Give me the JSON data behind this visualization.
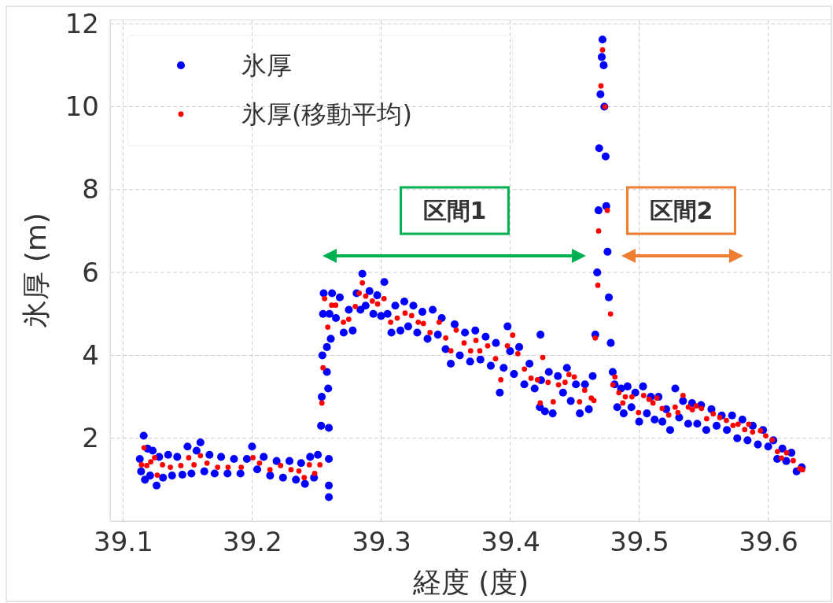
{
  "chart_data": {
    "type": "scatter",
    "xlabel": "経度 (度)",
    "ylabel": "氷厚 (m)",
    "xlim": [
      39.09,
      39.649
    ],
    "ylim": [
      0,
      12.1
    ],
    "xticks": [
      39.1,
      39.2,
      39.3,
      39.4,
      39.5,
      39.6
    ],
    "yticks": [
      2,
      4,
      6,
      8,
      10,
      12
    ],
    "grid": true,
    "legend": "top left",
    "marker": "circle",
    "annotations": [
      "区間1",
      "区間2"
    ],
    "series": [
      {
        "name": "氷厚",
        "color": "#0000ff",
        "x": [
          39.113,
          39.114,
          39.116,
          39.117,
          39.119,
          39.121,
          39.123,
          39.126,
          39.128,
          39.131,
          39.135,
          39.138,
          39.142,
          39.146,
          39.15,
          39.153,
          39.157,
          39.16,
          39.163,
          39.167,
          39.171,
          39.176,
          39.181,
          39.186,
          39.191,
          39.196,
          39.2,
          39.204,
          39.209,
          39.214,
          39.219,
          39.224,
          39.229,
          39.234,
          39.238,
          39.241,
          39.245,
          39.248,
          39.251,
          39.2535,
          39.254,
          39.2545,
          39.255,
          39.2555,
          39.2595,
          39.2595,
          39.2595,
          39.2595,
          39.259,
          39.258,
          39.258,
          39.26,
          39.261,
          39.262,
          39.265,
          39.268,
          39.271,
          39.275,
          39.278,
          39.281,
          39.284,
          39.2855,
          39.288,
          39.291,
          39.294,
          39.297,
          39.3,
          39.3025,
          39.305,
          39.308,
          39.311,
          39.315,
          39.318,
          39.321,
          39.325,
          39.328,
          39.332,
          39.336,
          39.34,
          39.344,
          39.347,
          39.35,
          39.354,
          39.357,
          39.361,
          39.365,
          39.369,
          39.373,
          39.377,
          39.381,
          39.385,
          39.389,
          39.392,
          39.395,
          39.398,
          39.4,
          39.403,
          39.407,
          39.411,
          39.415,
          39.419,
          39.423,
          39.4235,
          39.424,
          39.427,
          39.43,
          39.433,
          39.437,
          39.441,
          39.444,
          39.447,
          39.451,
          39.454,
          39.458,
          39.461,
          39.464,
          39.466,
          39.4675,
          39.4685,
          39.469,
          39.47,
          39.471,
          39.4716,
          39.4725,
          39.473,
          39.474,
          39.4745,
          39.4755,
          39.4765,
          39.478,
          39.4795,
          39.481,
          39.483,
          39.486,
          39.488,
          39.491,
          39.494,
          39.497,
          39.5,
          39.503,
          39.506,
          39.509,
          39.512,
          39.515,
          39.518,
          39.521,
          39.524,
          39.528,
          39.531,
          39.534,
          39.538,
          39.541,
          39.545,
          39.548,
          39.552,
          39.556,
          39.56,
          39.564,
          39.568,
          39.572,
          39.576,
          39.58,
          39.584,
          39.588,
          39.592,
          39.596,
          39.6,
          39.604,
          39.607,
          39.611,
          39.614,
          39.618,
          39.622,
          39.626
        ],
        "values": [
          1.5,
          1.2,
          2.06,
          1.0,
          1.75,
          1.1,
          1.7,
          0.86,
          1.55,
          1.05,
          1.6,
          1.1,
          1.55,
          1.12,
          1.8,
          1.15,
          1.7,
          1.9,
          1.2,
          1.6,
          1.15,
          1.55,
          1.15,
          1.5,
          1.15,
          1.5,
          1.8,
          1.25,
          1.55,
          1.1,
          1.45,
          1.05,
          1.45,
          1.0,
          1.4,
          0.9,
          1.55,
          1.05,
          1.6,
          2.3,
          3.0,
          4.0,
          5.0,
          5.5,
          0.58,
          0.86,
          1.5,
          2.25,
          3.2,
          4.2,
          3.6,
          5.0,
          4.4,
          5.5,
          4.9,
          5.4,
          4.55,
          5.1,
          4.6,
          5.5,
          5.1,
          5.97,
          5.2,
          5.55,
          5.0,
          5.45,
          4.95,
          5.77,
          5.0,
          4.55,
          5.2,
          4.6,
          5.3,
          4.7,
          5.2,
          4.55,
          5.05,
          4.4,
          5.1,
          4.5,
          4.9,
          4.15,
          3.8,
          4.75,
          4.0,
          4.55,
          3.85,
          4.6,
          3.9,
          4.45,
          3.75,
          4.3,
          3.1,
          3.7,
          4.7,
          4.1,
          3.55,
          4.2,
          3.3,
          3.8,
          3.2,
          2.75,
          4.5,
          3.4,
          2.65,
          3.6,
          2.6,
          3.5,
          3.1,
          3.7,
          2.9,
          3.3,
          2.6,
          3.3,
          2.7,
          3.5,
          4.5,
          6.0,
          7.5,
          9.0,
          10.3,
          11.2,
          11.62,
          11.0,
          10.0,
          8.8,
          7.6,
          6.5,
          5.4,
          4.3,
          3.6,
          3.3,
          2.75,
          3.2,
          2.6,
          3.25,
          2.75,
          3.1,
          2.4,
          3.25,
          2.6,
          3.0,
          2.45,
          3.0,
          2.4,
          2.7,
          2.2,
          3.2,
          2.5,
          2.9,
          2.35,
          2.85,
          2.35,
          2.8,
          2.2,
          2.7,
          2.3,
          2.55,
          2.2,
          2.55,
          2.0,
          2.45,
          1.95,
          2.3,
          1.85,
          2.2,
          1.8,
          1.95,
          1.5,
          1.75,
          1.45,
          1.65,
          1.2,
          1.3
        ]
      },
      {
        "name": "氷厚(移動平均)",
        "color": "#ff0000",
        "x": [
          39.1143,
          39.1163,
          39.1184,
          39.1215,
          39.1245,
          39.1265,
          39.1306,
          39.1367,
          39.1448,
          39.1509,
          39.155,
          39.16,
          39.1651,
          39.1733,
          39.1814,
          39.1916,
          39.2007,
          39.2058,
          39.2139,
          39.2221,
          39.2302,
          39.2363,
          39.2404,
          39.2444,
          39.2485,
          39.2526,
          39.2541,
          39.255,
          39.2562,
          39.2587,
          39.2617,
          39.2648,
          39.2708,
          39.2749,
          39.28,
          39.283,
          39.2855,
          39.2881,
          39.2932,
          39.2973,
          39.3023,
          39.3074,
          39.3125,
          39.3186,
          39.3237,
          39.3288,
          39.3328,
          39.3379,
          39.345,
          39.3501,
          39.3541,
          39.3582,
          39.3643,
          39.3694,
          39.3735,
          39.3765,
          39.3826,
          39.3887,
          39.3928,
          39.3979,
          39.402,
          39.406,
          39.4111,
          39.4162,
          39.4212,
          39.4233,
          39.4253,
          39.4294,
          39.4334,
          39.4375,
          39.4426,
          39.4456,
          39.4497,
          39.4538,
          39.4578,
          39.4629,
          39.4649,
          39.466,
          39.468,
          39.4686,
          39.4704,
          39.4716,
          39.4735,
          39.4753,
          39.4778,
          39.4796,
          39.4812,
          39.4843,
          39.4873,
          39.4893,
          39.4944,
          39.4995,
          39.5035,
          39.5076,
          39.5107,
          39.5137,
          39.5178,
          39.5229,
          39.5279,
          39.53,
          39.534,
          39.5381,
          39.5412,
          39.5442,
          39.5483,
          39.5523,
          39.5574,
          39.5625,
          39.5676,
          39.5727,
          39.5767,
          39.5818,
          39.5849,
          39.5879,
          39.594,
          39.5981,
          39.6032,
          39.6072,
          39.6103,
          39.6143,
          39.6194,
          39.6245,
          39.6266
        ],
        "values": [
          1.36,
          1.77,
          1.34,
          1.43,
          1.53,
          1.11,
          1.36,
          1.3,
          1.34,
          1.53,
          1.36,
          1.58,
          1.4,
          1.3,
          1.3,
          1.3,
          1.53,
          1.4,
          1.24,
          1.34,
          1.24,
          1.21,
          1.05,
          1.36,
          1.15,
          1.36,
          2.85,
          3.7,
          5.37,
          4.68,
          5.21,
          5.21,
          4.8,
          4.87,
          5.18,
          5.5,
          5.75,
          5.43,
          5.31,
          5.24,
          5.37,
          4.8,
          4.9,
          5.02,
          4.96,
          4.8,
          4.77,
          4.55,
          4.8,
          4.42,
          4.11,
          4.61,
          4.3,
          4.11,
          4.36,
          4.11,
          4.23,
          3.92,
          3.41,
          4.23,
          4.49,
          4.04,
          3.67,
          3.45,
          3.41,
          2.85,
          3.95,
          3.35,
          2.88,
          3.29,
          3.35,
          3.54,
          3.48,
          2.88,
          3.16,
          2.97,
          2.91,
          4.42,
          5.69,
          7.0,
          10.5,
          11.37,
          10.0,
          7.5,
          5.0,
          3.29,
          3.48,
          3.1,
          2.85,
          3.0,
          3.0,
          2.62,
          3.03,
          2.94,
          2.85,
          2.97,
          2.72,
          2.56,
          2.75,
          2.62,
          3.03,
          2.75,
          2.69,
          2.78,
          2.72,
          2.47,
          2.59,
          2.5,
          2.43,
          2.31,
          2.34,
          2.21,
          2.34,
          2.15,
          2.18,
          2.06,
          1.96,
          1.68,
          1.52,
          1.65,
          1.46,
          1.27,
          1.24
        ]
      }
    ]
  }
}
